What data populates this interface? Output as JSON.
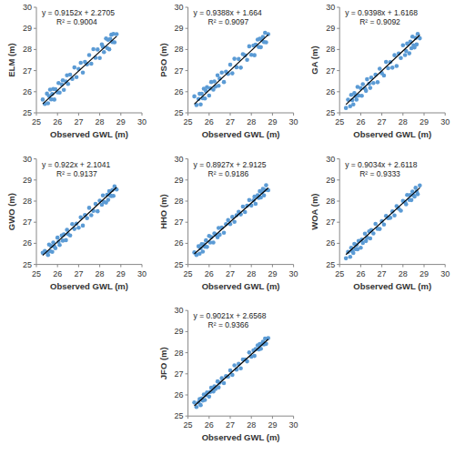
{
  "chart_data": [
    {
      "type": "scatter",
      "y_label": "ELM (m)",
      "x_label": "Observed GWL (m)",
      "color": "#5b9bd5",
      "marker": "circle",
      "grid": false,
      "xlim": [
        25,
        30
      ],
      "ylim": [
        25,
        30
      ],
      "xticks": [
        25,
        26,
        27,
        28,
        29,
        30
      ],
      "yticks": [
        25,
        26,
        27,
        28,
        29,
        30
      ],
      "trendline": {
        "slope": 0.9152,
        "intercept": 2.2705,
        "label": "y = 0.9152x + 2.2705"
      },
      "r2_label": "R² = 0.9004",
      "x": [
        25.3,
        25.4,
        25.5,
        25.55,
        25.6,
        25.65,
        25.7,
        25.75,
        25.8,
        25.85,
        25.9,
        26.0,
        26.05,
        26.1,
        26.2,
        26.25,
        26.3,
        26.4,
        26.45,
        26.5,
        26.6,
        26.7,
        26.8,
        26.9,
        27.0,
        27.1,
        27.2,
        27.3,
        27.4,
        27.5,
        27.6,
        27.7,
        27.8,
        27.9,
        28.0,
        28.1,
        28.15,
        28.2,
        28.3,
        28.35,
        28.4,
        28.45,
        28.5,
        28.55,
        28.6,
        28.65,
        28.7,
        28.8
      ],
      "values": [
        25.63,
        25.42,
        25.91,
        25.45,
        25.8,
        26.1,
        25.64,
        25.89,
        26.13,
        25.63,
        26.12,
        25.97,
        26.41,
        25.96,
        26.35,
        26.54,
        26.09,
        26.48,
        26.78,
        26.37,
        26.81,
        26.61,
        27.15,
        26.69,
        27.08,
        27.37,
        26.91,
        27.41,
        27.3,
        27.74,
        27.33,
        28.02,
        27.61,
        28.0,
        27.6,
        28.24,
        28.13,
        27.88,
        28.52,
        28.07,
        28.46,
        28.01,
        28.5,
        28.7,
        28.35,
        28.74,
        28.34,
        28.73
      ]
    },
    {
      "type": "scatter",
      "y_label": "PSO (m)",
      "x_label": "Observed GWL (m)",
      "color": "#5b9bd5",
      "marker": "circle",
      "grid": false,
      "xlim": [
        25,
        30
      ],
      "ylim": [
        25,
        30
      ],
      "xticks": [
        25,
        26,
        27,
        28,
        29,
        30
      ],
      "yticks": [
        25,
        26,
        27,
        28,
        29,
        30
      ],
      "trendline": {
        "slope": 0.9388,
        "intercept": 1.664,
        "label": "y = 0.9388x + 1.664"
      },
      "r2_label": "R² = 0.9097",
      "x": [
        25.3,
        25.4,
        25.5,
        25.55,
        25.6,
        25.65,
        25.7,
        25.75,
        25.8,
        25.85,
        25.9,
        26.0,
        26.05,
        26.1,
        26.2,
        26.25,
        26.3,
        26.4,
        26.45,
        26.5,
        26.6,
        26.7,
        26.8,
        26.9,
        27.0,
        27.1,
        27.2,
        27.3,
        27.4,
        27.5,
        27.6,
        27.7,
        27.8,
        27.9,
        28.0,
        28.1,
        28.15,
        28.2,
        28.3,
        28.35,
        28.4,
        28.45,
        28.5,
        28.55,
        28.6,
        28.65,
        28.7,
        28.8
      ],
      "values": [
        25.78,
        25.37,
        25.66,
        25.9,
        25.4,
        25.9,
        25.69,
        26.14,
        25.68,
        26.03,
        26.22,
        25.82,
        26.16,
        26.46,
        26.1,
        26.49,
        26.24,
        26.78,
        26.28,
        26.62,
        26.91,
        26.46,
        26.95,
        26.84,
        27.28,
        26.87,
        27.56,
        27.16,
        27.55,
        27.14,
        27.78,
        27.72,
        27.51,
        28.15,
        27.75,
        28.19,
        27.73,
        28.23,
        28.47,
        28.12,
        28.51,
        28.11,
        28.45,
        28.6,
        28.35,
        28.79,
        28.34,
        28.73
      ]
    },
    {
      "type": "scatter",
      "y_label": "GA (m)",
      "x_label": "Observed GWL (m)",
      "color": "#5b9bd5",
      "marker": "circle",
      "grid": false,
      "xlim": [
        25,
        30
      ],
      "ylim": [
        25,
        30
      ],
      "xticks": [
        25,
        26,
        27,
        28,
        29,
        30
      ],
      "yticks": [
        25,
        26,
        27,
        28,
        29,
        30
      ],
      "trendline": {
        "slope": 0.9398,
        "intercept": 1.6168,
        "label": "y = 0.9398x + 1.6168"
      },
      "r2_label": "R² = 0.9092",
      "x": [
        25.3,
        25.4,
        25.5,
        25.55,
        25.6,
        25.65,
        25.7,
        25.75,
        25.8,
        25.85,
        25.9,
        26.0,
        26.05,
        26.1,
        26.2,
        26.25,
        26.3,
        26.4,
        26.45,
        26.5,
        26.6,
        26.7,
        26.8,
        26.9,
        27.0,
        27.1,
        27.2,
        27.3,
        27.4,
        27.5,
        27.6,
        27.7,
        27.8,
        27.9,
        28.0,
        28.1,
        28.15,
        28.2,
        28.3,
        28.35,
        28.4,
        28.45,
        28.5,
        28.55,
        28.6,
        28.65,
        28.7,
        28.8
      ],
      "values": [
        25.23,
        25.62,
        25.31,
        25.85,
        25.6,
        25.4,
        25.94,
        25.79,
        25.63,
        26.23,
        25.82,
        26.17,
        25.81,
        26.36,
        26.15,
        26.04,
        26.59,
        26.38,
        26.18,
        26.67,
        26.41,
        26.81,
        26.45,
        27.09,
        26.88,
        26.77,
        27.41,
        27.11,
        27.4,
        27.14,
        27.73,
        27.22,
        27.81,
        27.6,
        28.2,
        27.74,
        27.93,
        28.28,
        27.82,
        28.37,
        28.06,
        28.61,
        28.2,
        28.1,
        28.55,
        28.24,
        28.74,
        28.53
      ]
    },
    {
      "type": "scatter",
      "y_label": "GWO (m)",
      "x_label": "Observed GWL (m)",
      "color": "#5b9bd5",
      "marker": "circle",
      "grid": false,
      "xlim": [
        25,
        30
      ],
      "ylim": [
        25,
        30
      ],
      "xticks": [
        25,
        26,
        27,
        28,
        29,
        30
      ],
      "yticks": [
        25,
        26,
        27,
        28,
        29,
        30
      ],
      "trendline": {
        "slope": 0.922,
        "intercept": 2.1041,
        "label": "y = 0.922x + 2.1041"
      },
      "r2_label": "R² = 0.9137",
      "x": [
        25.3,
        25.4,
        25.5,
        25.55,
        25.6,
        25.65,
        25.7,
        25.75,
        25.8,
        25.85,
        25.9,
        26.0,
        26.05,
        26.1,
        26.2,
        26.25,
        26.3,
        26.4,
        26.45,
        26.5,
        26.6,
        26.7,
        26.8,
        26.9,
        27.0,
        27.1,
        27.2,
        27.3,
        27.4,
        27.5,
        27.6,
        27.7,
        27.8,
        27.9,
        28.0,
        28.1,
        28.15,
        28.2,
        28.3,
        28.35,
        28.4,
        28.45,
        28.5,
        28.55,
        28.6,
        28.65,
        28.7,
        28.8
      ],
      "values": [
        25.55,
        25.64,
        25.57,
        25.45,
        25.94,
        25.63,
        25.87,
        25.6,
        26.04,
        25.85,
        25.77,
        26.27,
        26.07,
        25.92,
        26.37,
        26.13,
        26.42,
        26.15,
        26.64,
        26.44,
        26.37,
        26.91,
        26.68,
        26.93,
        26.74,
        27.23,
        26.84,
        27.34,
        27.19,
        27.68,
        27.33,
        27.54,
        27.87,
        27.52,
        28.02,
        27.83,
        28.27,
        27.96,
        27.93,
        28.3,
        28.06,
        28.47,
        28.27,
        28.24,
        28.53,
        28.25,
        28.7,
        28.55
      ]
    },
    {
      "type": "scatter",
      "y_label": "HHO (m)",
      "x_label": "Observed GWL (m)",
      "color": "#5b9bd5",
      "marker": "circle",
      "grid": false,
      "xlim": [
        25,
        30
      ],
      "ylim": [
        25,
        30
      ],
      "xticks": [
        25,
        26,
        27,
        28,
        29,
        30
      ],
      "yticks": [
        25,
        26,
        27,
        28,
        29,
        30
      ],
      "trendline": {
        "slope": 0.8927,
        "intercept": 2.9125,
        "label": "y = 0.8927x + 2.9125"
      },
      "r2_label": "R² = 0.9186",
      "x": [
        25.3,
        25.4,
        25.5,
        25.55,
        25.6,
        25.65,
        25.7,
        25.75,
        25.8,
        25.85,
        25.9,
        26.0,
        26.05,
        26.1,
        26.2,
        26.25,
        26.3,
        26.4,
        26.45,
        26.5,
        26.6,
        26.7,
        26.8,
        26.9,
        27.0,
        27.1,
        27.2,
        27.3,
        27.4,
        27.5,
        27.6,
        27.7,
        27.8,
        27.9,
        28.0,
        28.1,
        28.15,
        28.2,
        28.3,
        28.35,
        28.4,
        28.45,
        28.5,
        28.55,
        28.6,
        28.65,
        28.7,
        28.8
      ],
      "values": [
        25.57,
        25.45,
        25.86,
        25.51,
        25.77,
        25.96,
        25.61,
        25.95,
        25.84,
        26.14,
        25.83,
        26.35,
        26.04,
        26.3,
        26.04,
        26.47,
        26.41,
        26.29,
        26.73,
        26.41,
        26.75,
        26.5,
        26.91,
        27.1,
        26.91,
        27.25,
        27.02,
        27.33,
        27.49,
        27.37,
        27.74,
        27.48,
        27.78,
        28.05,
        27.79,
        28.03,
        28.21,
        27.87,
        28.28,
        28.15,
        28.47,
        28.17,
        28.42,
        28.58,
        28.27,
        28.53,
        28.75,
        28.52
      ]
    },
    {
      "type": "scatter",
      "y_label": "WOA (m)",
      "x_label": "Observed GWL (m)",
      "color": "#5b9bd5",
      "marker": "circle",
      "grid": false,
      "xlim": [
        25,
        30
      ],
      "ylim": [
        25,
        30
      ],
      "xticks": [
        25,
        26,
        27,
        28,
        29,
        30
      ],
      "yticks": [
        25,
        26,
        27,
        28,
        29,
        30
      ],
      "trendline": {
        "slope": 0.9034,
        "intercept": 2.6118,
        "label": "y = 0.9034x + 2.6118"
      },
      "r2_label": "R² = 0.9333",
      "x": [
        25.3,
        25.4,
        25.5,
        25.55,
        25.6,
        25.65,
        25.7,
        25.75,
        25.8,
        25.85,
        25.9,
        26.0,
        26.05,
        26.1,
        26.2,
        26.25,
        26.3,
        26.4,
        26.45,
        26.5,
        26.6,
        26.7,
        26.8,
        26.9,
        27.0,
        27.1,
        27.2,
        27.3,
        27.4,
        27.5,
        27.6,
        27.7,
        27.8,
        27.9,
        28.0,
        28.1,
        28.15,
        28.2,
        28.3,
        28.35,
        28.4,
        28.45,
        28.5,
        28.55,
        28.6,
        28.65,
        28.7,
        28.8
      ],
      "values": [
        25.29,
        25.59,
        25.36,
        25.79,
        25.63,
        25.54,
        25.97,
        25.73,
        25.92,
        25.72,
        26.11,
        25.79,
        26.18,
        26.02,
        26.46,
        26.11,
        26.27,
        26.57,
        26.23,
        26.63,
        26.47,
        26.92,
        26.69,
        26.68,
        27.05,
        26.89,
        27.3,
        27.19,
        27.21,
        27.51,
        27.32,
        27.76,
        27.64,
        27.55,
        28.01,
        27.95,
        27.85,
        28.29,
        28.06,
        28.29,
        28.05,
        28.45,
        28.28,
        28.22,
        28.63,
        28.45,
        28.33,
        28.74
      ]
    },
    {
      "type": "scatter",
      "y_label": "JFO (m)",
      "x_label": "Observed GWL (m)",
      "color": "#5b9bd5",
      "marker": "circle",
      "grid": false,
      "xlim": [
        25,
        30
      ],
      "ylim": [
        25,
        30
      ],
      "xticks": [
        25,
        26,
        27,
        28,
        29,
        30
      ],
      "yticks": [
        25,
        26,
        27,
        28,
        29,
        30
      ],
      "trendline": {
        "slope": 0.9021,
        "intercept": 2.6568,
        "label": "y = 0.9021x + 2.6568"
      },
      "r2_label": "R² = 0.9366",
      "x": [
        25.3,
        25.4,
        25.5,
        25.55,
        25.6,
        25.65,
        25.7,
        25.75,
        25.8,
        25.85,
        25.9,
        26.0,
        26.05,
        26.1,
        26.2,
        26.25,
        26.3,
        26.4,
        26.45,
        26.5,
        26.6,
        26.7,
        26.8,
        26.9,
        27.0,
        27.1,
        27.2,
        27.3,
        27.4,
        27.5,
        27.6,
        27.7,
        27.8,
        27.9,
        28.0,
        28.1,
        28.15,
        28.2,
        28.3,
        28.35,
        28.4,
        28.45,
        28.5,
        28.55,
        28.6,
        28.65,
        28.7,
        28.8
      ],
      "values": [
        25.64,
        25.43,
        25.64,
        25.8,
        25.52,
        25.84,
        25.73,
        26.02,
        25.76,
        25.99,
        26.12,
        25.92,
        26.14,
        26.34,
        26.16,
        26.41,
        26.28,
        26.64,
        26.36,
        26.58,
        26.79,
        26.56,
        26.89,
        26.86,
        27.16,
        26.95,
        27.4,
        27.2,
        27.47,
        27.26,
        27.68,
        27.68,
        27.59,
        28.01,
        27.81,
        28.11,
        27.85,
        28.17,
        28.35,
        28.16,
        28.41,
        28.19,
        28.41,
        28.52,
        28.39,
        28.67,
        28.42,
        28.69
      ]
    }
  ]
}
